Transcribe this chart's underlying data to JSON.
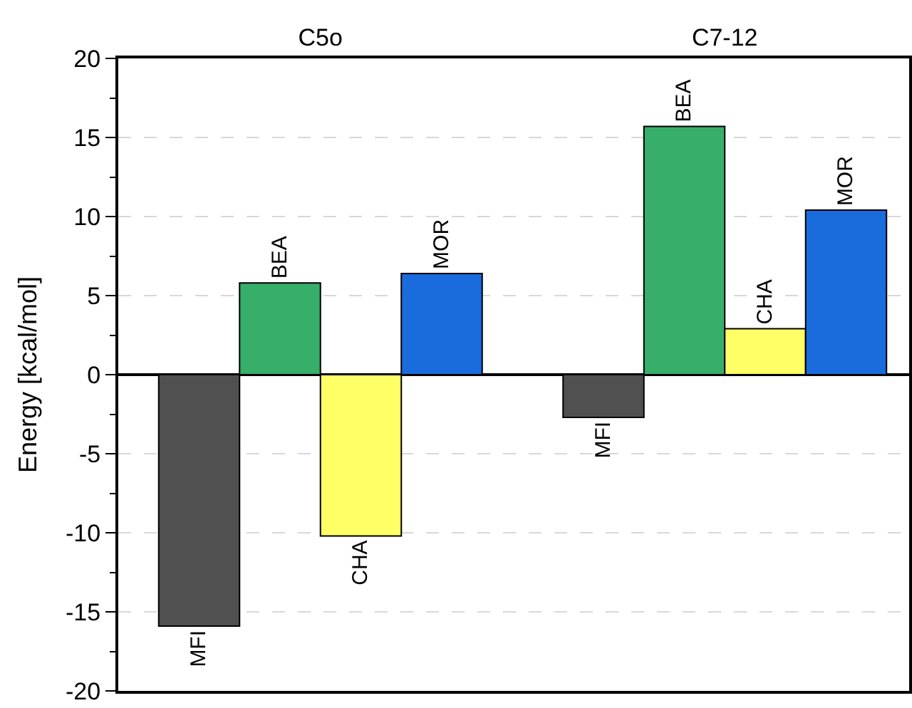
{
  "chart_data": {
    "type": "bar",
    "ylabel": "Energy [kcal/mol]",
    "categories": [
      "C5o",
      "C7-12"
    ],
    "series": [
      {
        "name": "MFI",
        "color": "#505050",
        "values": [
          -15.9,
          -2.7
        ]
      },
      {
        "name": "BEA",
        "color": "#37ae6a",
        "values": [
          5.8,
          15.7
        ]
      },
      {
        "name": "CHA",
        "color": "#ffff66",
        "values": [
          -10.2,
          2.9
        ]
      },
      {
        "name": "MOR",
        "color": "#1a6bdc",
        "values": [
          6.4,
          10.4
        ]
      }
    ],
    "ylim": [
      -20,
      20
    ],
    "yticks": [
      -20,
      -15,
      -10,
      -5,
      0,
      5,
      10,
      15,
      20
    ],
    "grid": "y",
    "legend": false
  }
}
